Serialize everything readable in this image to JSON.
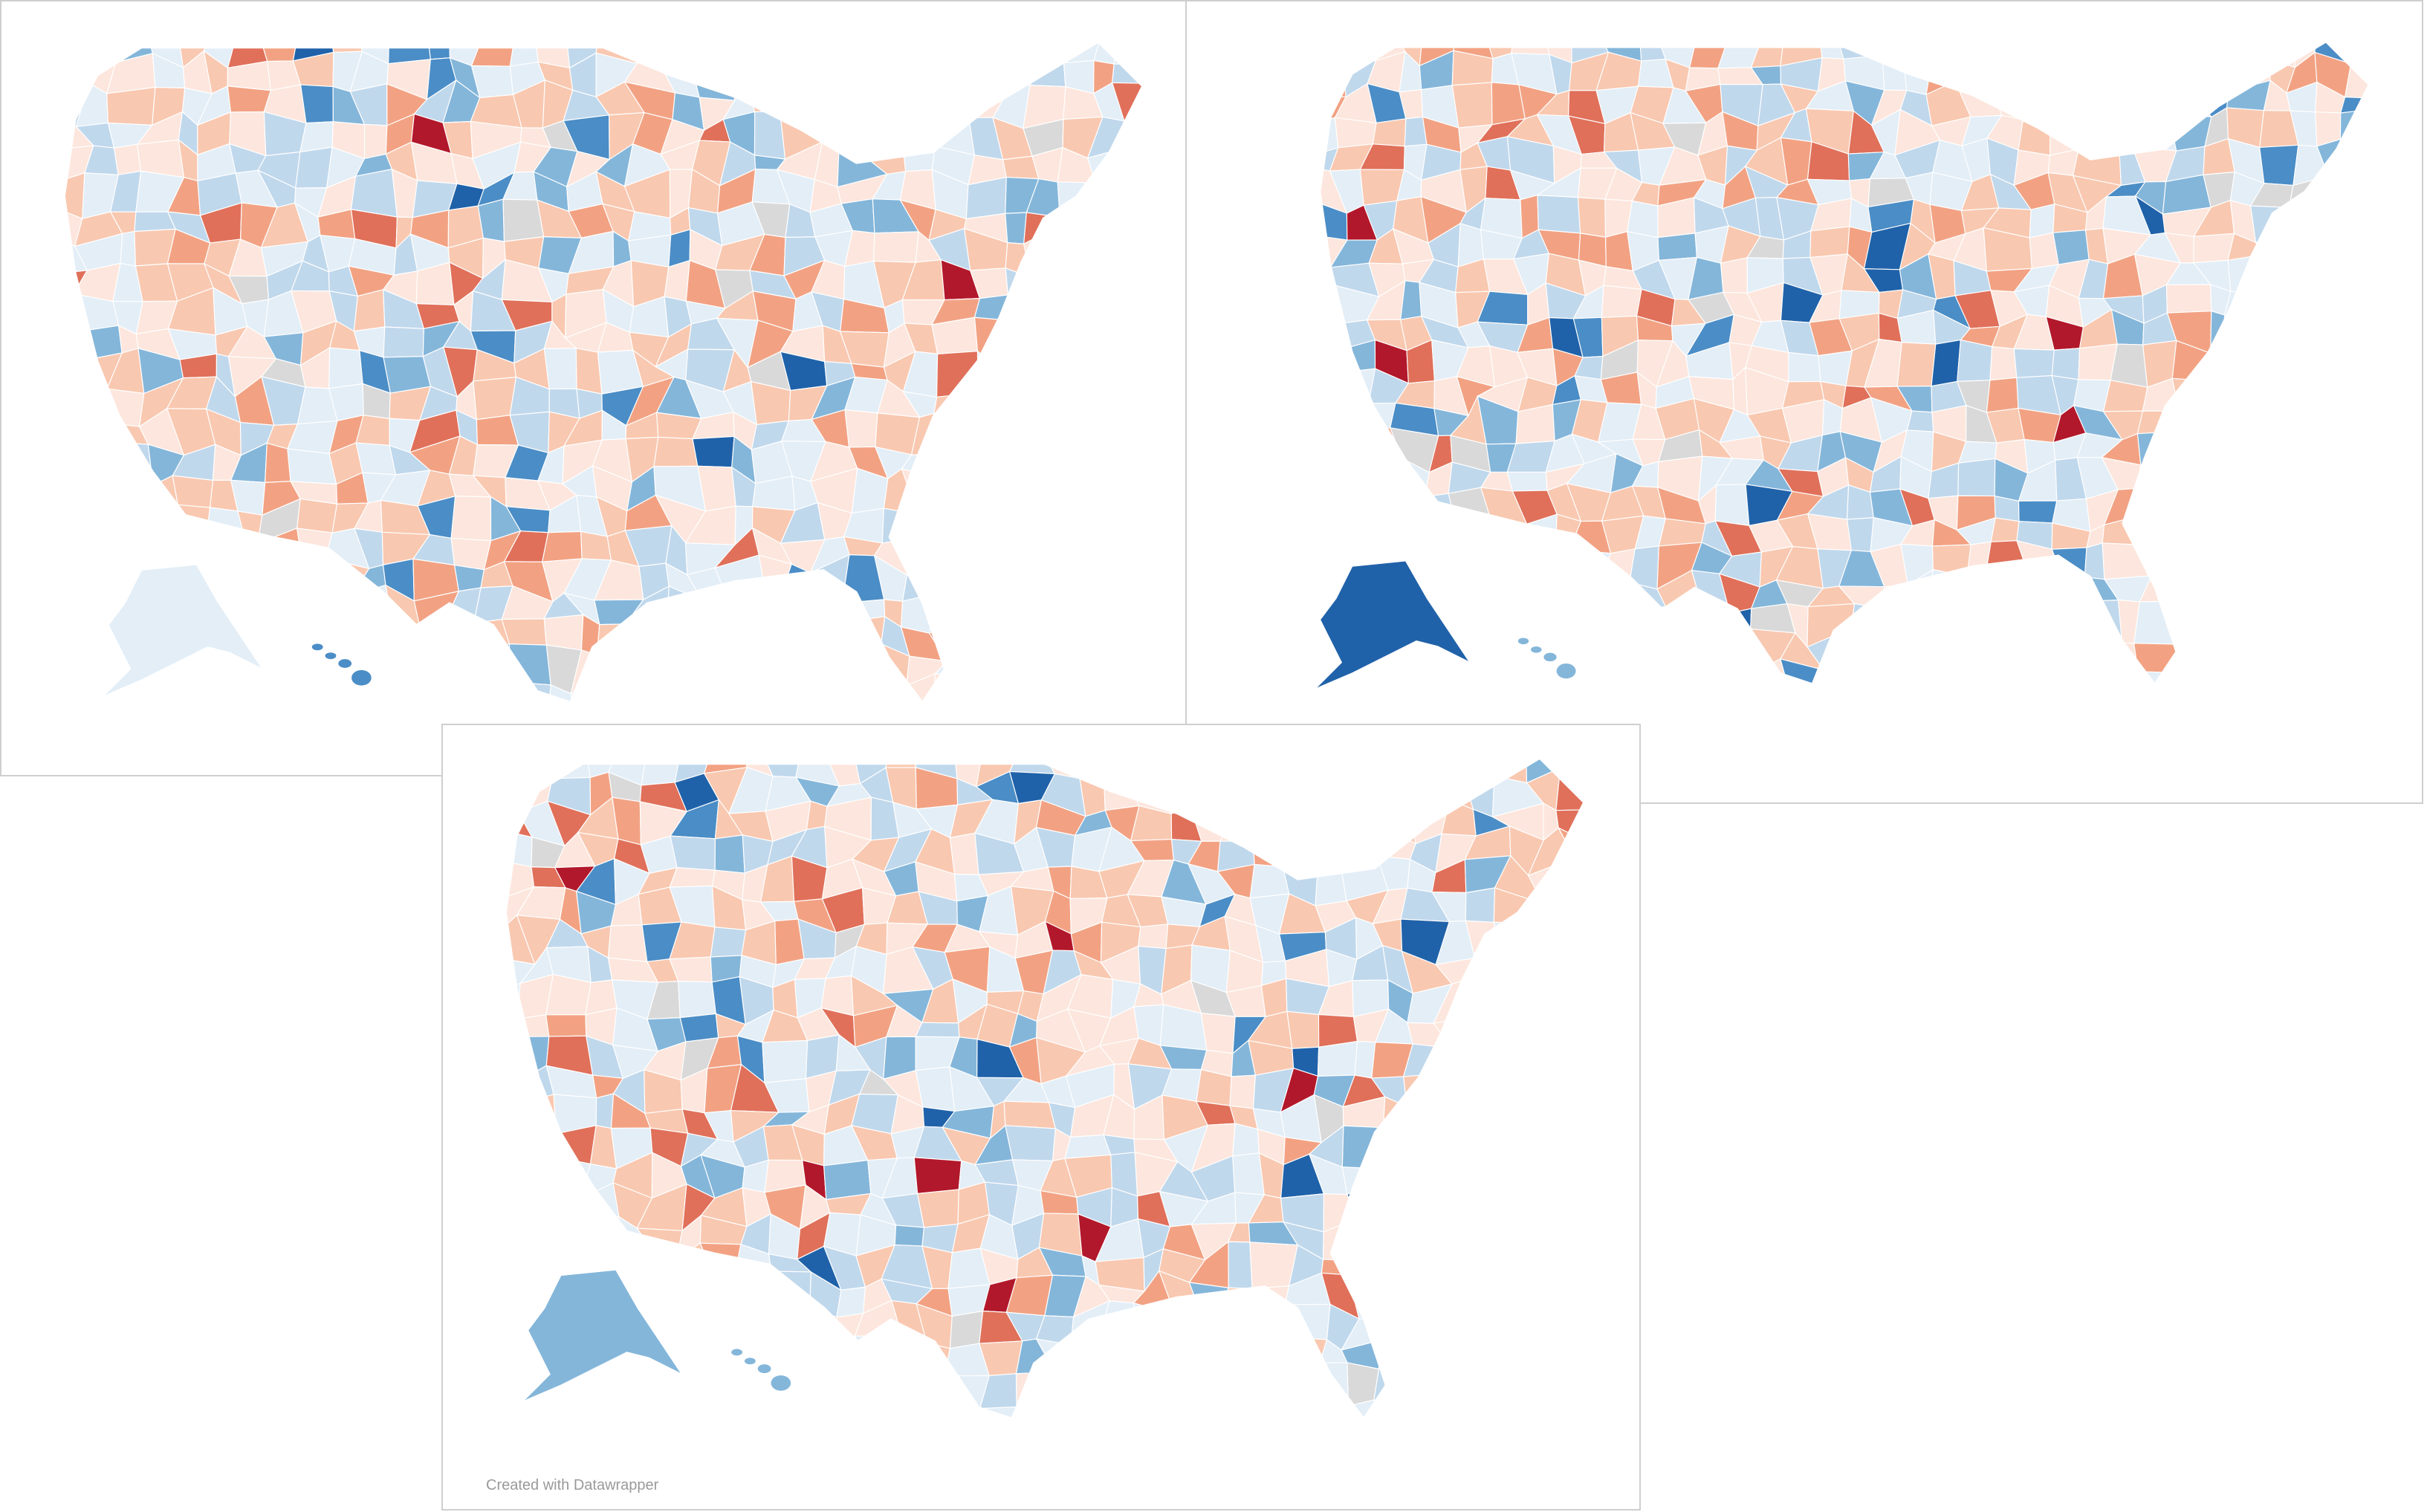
{
  "footer": {
    "credit": "Created with Datawrapper"
  }
}
